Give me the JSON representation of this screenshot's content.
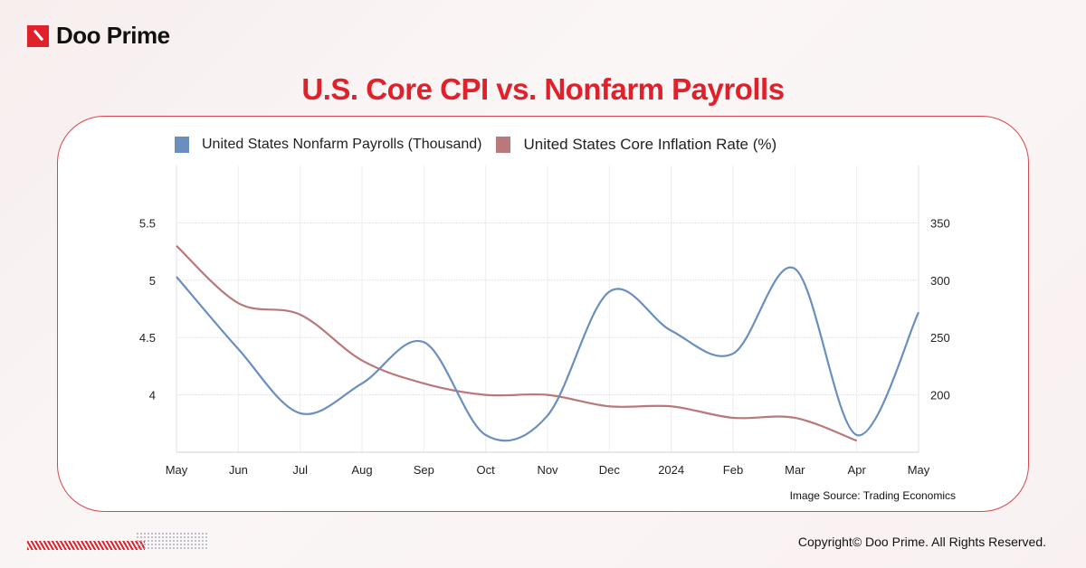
{
  "brand": {
    "name": "Doo Prime",
    "color": "#e0202a"
  },
  "title": "U.S. Core CPI  vs. Nonfarm Payrolls",
  "source": "Image Source: Trading Economics",
  "copyright": "Copyright© Doo Prime. All Rights Reserved.",
  "chart_data": {
    "type": "line",
    "title": "",
    "categories": [
      "May",
      "Jun",
      "Jul",
      "Aug",
      "Sep",
      "Oct",
      "Nov",
      "Dec",
      "2024",
      "Feb",
      "Mar",
      "Apr",
      "May"
    ],
    "legend_position": "top-left",
    "grid": true,
    "left_axis": {
      "range": [
        3.5,
        6
      ],
      "ticks": [
        "4",
        "4.5",
        "5",
        "5.5"
      ],
      "tick_values": [
        4,
        4.5,
        5,
        5.5
      ]
    },
    "right_axis": {
      "range": [
        150,
        400
      ],
      "ticks": [
        "200",
        "250",
        "300",
        "350"
      ],
      "tick_values": [
        200,
        250,
        300,
        350
      ]
    },
    "series": [
      {
        "name": "United States Nonfarm Payrolls (Thousand)",
        "axis": "right",
        "color": "#6a8fbf",
        "values": [
          303,
          240,
          184,
          210,
          246,
          165,
          182,
          290,
          256,
          236,
          310,
          165,
          272
        ]
      },
      {
        "name": "United States Core Inflation Rate (%)",
        "axis": "left",
        "color": "#b9787a",
        "values": [
          5.3,
          4.8,
          4.7,
          4.3,
          4.1,
          4.0,
          4.0,
          3.9,
          3.9,
          3.8,
          3.8,
          3.6,
          null
        ]
      }
    ]
  }
}
